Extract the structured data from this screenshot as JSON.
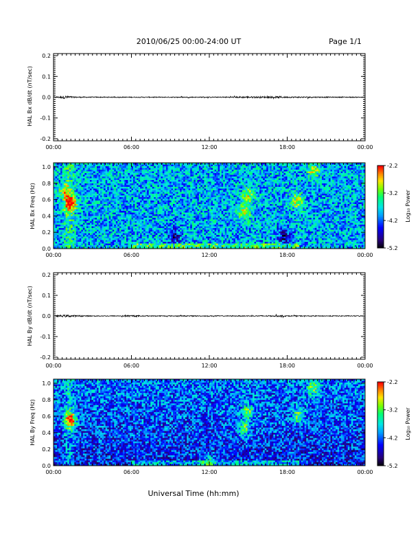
{
  "header": {
    "title": "2010/06/25  00:00-24:00 UT",
    "page": "Page 1/1"
  },
  "footer": {
    "xlabel": "Universal Time (hh:mm)"
  },
  "colorbar": {
    "title": "Log₁₀ Power",
    "ticks": [
      "-2.2",
      "-3.2",
      "-4.2",
      "-5.2"
    ],
    "range": [
      -5.2,
      -2.2
    ]
  },
  "chart_data": [
    {
      "type": "line",
      "name": "bx-dbdt",
      "ylabel": "HAL Bx dB/dt (nT/sec)",
      "xlabel": "",
      "xlim": [
        "00:00",
        "24:00"
      ],
      "ylim": [
        -0.21,
        0.21
      ],
      "x_ticks": [
        "00:00",
        "06:00",
        "12:00",
        "18:00",
        "00:00"
      ],
      "y_ticks": [
        "0.2",
        "0.1",
        "0.0",
        "-0.1",
        "-0.2"
      ],
      "x_hours": [
        0,
        1.0,
        1.5,
        3,
        5,
        7,
        9,
        11,
        12.5,
        14,
        14.5,
        15.5,
        16.5,
        17.3,
        18,
        19,
        20,
        21.5,
        23,
        24
      ],
      "y_amplitude": [
        0.002,
        0.008,
        0.003,
        0.002,
        0.002,
        0.002,
        0.002,
        0.002,
        0.002,
        0.003,
        0.004,
        0.004,
        0.004,
        0.005,
        0.003,
        0.003,
        0.003,
        0.002,
        0.002,
        0.002
      ]
    },
    {
      "type": "heatmap",
      "name": "bx-freq",
      "ylabel": "HAL Bx Freq (Hz)",
      "xlabel": "",
      "xlim": [
        "00:00",
        "24:00"
      ],
      "ylim": [
        0.0,
        1.05
      ],
      "x_ticks": [
        "00:00",
        "06:00",
        "12:00",
        "18:00",
        "00:00"
      ],
      "y_ticks": [
        "1.0",
        "0.8",
        "0.6",
        "0.4",
        "0.2",
        "0.0"
      ],
      "value_range": [
        -5.2,
        -2.2
      ],
      "background_log_power": -3.9,
      "features": [
        {
          "t_hours": 1.3,
          "f_hz": 0.55,
          "log_power": -2.3
        },
        {
          "t_hours": 0.9,
          "f_hz": 0.7,
          "log_power": -3.0
        },
        {
          "t_hours": 14.7,
          "f_hz": 0.45,
          "log_power": -2.9
        },
        {
          "t_hours": 15.0,
          "f_hz": 0.65,
          "log_power": -3.0
        },
        {
          "t_hours": 18.8,
          "f_hz": 0.58,
          "log_power": -2.9
        },
        {
          "t_hours": 20.0,
          "f_hz": 0.95,
          "log_power": -3.0
        },
        {
          "t_hours": 9.3,
          "f_hz": 0.15,
          "log_power": -4.7
        },
        {
          "t_hours": 17.8,
          "f_hz": 0.15,
          "log_power": -4.7
        }
      ]
    },
    {
      "type": "line",
      "name": "by-dbdt",
      "ylabel": "HAL By dB/dt (nT/sec)",
      "xlabel": "",
      "xlim": [
        "00:00",
        "24:00"
      ],
      "ylim": [
        -0.21,
        0.21
      ],
      "x_ticks": [
        "00:00",
        "06:00",
        "12:00",
        "18:00",
        "00:00"
      ],
      "y_ticks": [
        "0.2",
        "0.1",
        "0.0",
        "-0.1",
        "-0.2"
      ],
      "x_hours": [
        0,
        1.0,
        1.5,
        3,
        5,
        6,
        7,
        9,
        11,
        13,
        15,
        17,
        17.5,
        18,
        20,
        22,
        24
      ],
      "y_amplitude": [
        0.002,
        0.006,
        0.004,
        0.002,
        0.002,
        0.004,
        0.002,
        0.002,
        0.002,
        0.002,
        0.002,
        0.003,
        0.004,
        0.002,
        0.002,
        0.002,
        0.002
      ]
    },
    {
      "type": "heatmap",
      "name": "by-freq",
      "ylabel": "HAL By Freq (Hz)",
      "xlabel": "",
      "xlim": [
        "00:00",
        "24:00"
      ],
      "ylim": [
        0.0,
        1.05
      ],
      "x_ticks": [
        "00:00",
        "06:00",
        "12:00",
        "18:00",
        "00:00"
      ],
      "y_ticks": [
        "1.0",
        "0.8",
        "0.6",
        "0.4",
        "0.2",
        "0.0"
      ],
      "value_range": [
        -5.2,
        -2.2
      ],
      "background_log_power": -4.1,
      "features": [
        {
          "t_hours": 1.3,
          "f_hz": 0.55,
          "log_power": -2.3
        },
        {
          "t_hours": 14.7,
          "f_hz": 0.45,
          "log_power": -3.0
        },
        {
          "t_hours": 15.0,
          "f_hz": 0.65,
          "log_power": -3.1
        },
        {
          "t_hours": 18.8,
          "f_hz": 0.6,
          "log_power": -3.1
        },
        {
          "t_hours": 20.0,
          "f_hz": 0.95,
          "log_power": -3.1
        },
        {
          "t_hours": 12.0,
          "f_hz": 0.05,
          "log_power": -3.3
        }
      ]
    }
  ]
}
